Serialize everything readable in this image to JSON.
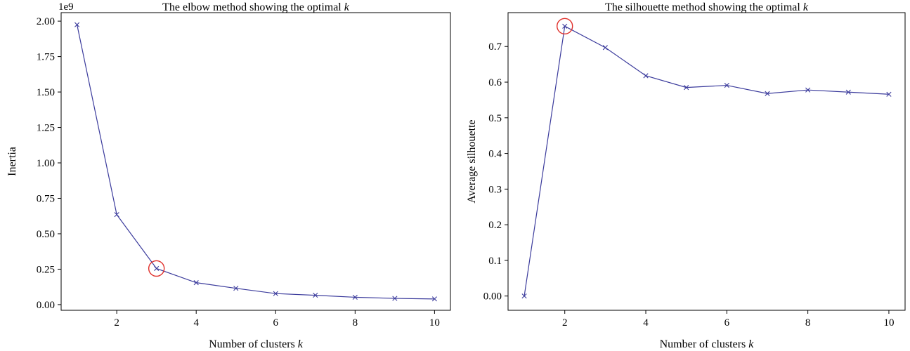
{
  "chart_data": [
    {
      "type": "line",
      "title": "The elbow method showing the optimal",
      "title_var": "k",
      "xlabel": "Number of clusters",
      "xlabel_var": "k",
      "ylabel": "Inertia",
      "y_multiplier": "1e9",
      "x": [
        1,
        2,
        3,
        4,
        5,
        6,
        7,
        8,
        9,
        10
      ],
      "series": [
        {
          "values": [
            1.975,
            0.635,
            0.255,
            0.155,
            0.115,
            0.078,
            0.066,
            0.052,
            0.044,
            0.04
          ]
        }
      ],
      "xlim": [
        0.6,
        10.4
      ],
      "ylim": [
        -0.04,
        2.06
      ],
      "xticks": [
        2,
        4,
        6,
        8,
        10
      ],
      "yticks": [
        0.0,
        0.25,
        0.5,
        0.75,
        1.0,
        1.25,
        1.5,
        1.75,
        2.0
      ],
      "ytick_labels": [
        "0.00",
        "0.25",
        "0.50",
        "0.75",
        "1.00",
        "1.25",
        "1.50",
        "1.75",
        "2.00"
      ],
      "highlight": {
        "x": 3,
        "y": 0.255
      },
      "marker": "x",
      "grid": false,
      "line_color": "#3b3b9c",
      "highlight_color": "#e0302b"
    },
    {
      "type": "line",
      "title": "The silhouette method showing the optimal",
      "title_var": "k",
      "xlabel": "Number of clusters",
      "xlabel_var": "k",
      "ylabel": "Average silhouette",
      "x": [
        1,
        2,
        3,
        4,
        5,
        6,
        7,
        8,
        9,
        10
      ],
      "series": [
        {
          "values": [
            0.0,
            0.757,
            0.697,
            0.618,
            0.585,
            0.591,
            0.568,
            0.578,
            0.572,
            0.566
          ]
        }
      ],
      "xlim": [
        0.6,
        10.4
      ],
      "ylim": [
        -0.04,
        0.795
      ],
      "xticks": [
        2,
        4,
        6,
        8,
        10
      ],
      "yticks": [
        0.0,
        0.1,
        0.2,
        0.3,
        0.4,
        0.5,
        0.6,
        0.7
      ],
      "ytick_labels": [
        "0.00",
        "0.1",
        "0.2",
        "0.3",
        "0.4",
        "0.5",
        "0.6",
        "0.7"
      ],
      "highlight": {
        "x": 2,
        "y": 0.757
      },
      "marker": "x",
      "grid": false,
      "line_color": "#3b3b9c",
      "highlight_color": "#e0302b"
    }
  ]
}
